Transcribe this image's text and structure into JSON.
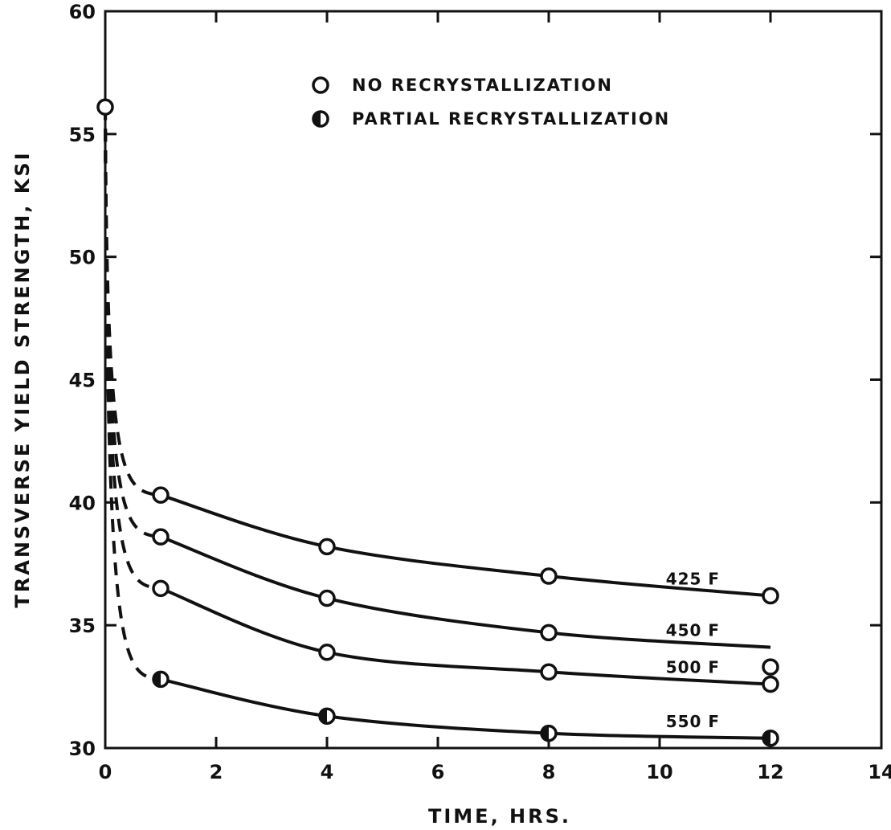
{
  "chart_data": {
    "type": "line",
    "title": "",
    "xlabel": "TIME, HRS.",
    "ylabel": "TRANSVERSE YIELD STRENGTH, KSI",
    "xlim": [
      0,
      14
    ],
    "ylim": [
      30,
      60
    ],
    "x_ticks": [
      0,
      2,
      4,
      6,
      8,
      10,
      12,
      14
    ],
    "y_ticks": [
      30,
      35,
      40,
      45,
      50,
      55,
      60
    ],
    "grid": false,
    "legend": {
      "placement": "top-center",
      "entries": [
        {
          "marker": "open-circle",
          "label": "NO RECRYSTALLIZATION"
        },
        {
          "marker": "half-filled-circle",
          "label": "PARTIAL RECRYSTALLIZATION"
        }
      ]
    },
    "start_point": {
      "x": 0,
      "y": 56.1,
      "marker": "open-circle"
    },
    "series": [
      {
        "name": "425 F",
        "points": [
          {
            "x": 1,
            "y": 40.3,
            "marker": "open-circle"
          },
          {
            "x": 4,
            "y": 38.2,
            "marker": "open-circle"
          },
          {
            "x": 8,
            "y": 37.0,
            "marker": "open-circle"
          },
          {
            "x": 12,
            "y": 36.2,
            "marker": "open-circle"
          }
        ],
        "curve_end": 12
      },
      {
        "name": "450 F",
        "points": [
          {
            "x": 1,
            "y": 38.6,
            "marker": "open-circle"
          },
          {
            "x": 4,
            "y": 36.1,
            "marker": "open-circle"
          },
          {
            "x": 8,
            "y": 34.7,
            "marker": "open-circle"
          }
        ],
        "curve_end": 12,
        "curve_end_y": 34.1
      },
      {
        "name": "500 F",
        "points": [
          {
            "x": 1,
            "y": 36.5,
            "marker": "open-circle"
          },
          {
            "x": 4,
            "y": 33.9,
            "marker": "open-circle"
          },
          {
            "x": 8,
            "y": 33.1,
            "marker": "open-circle"
          },
          {
            "x": 12,
            "y": 32.6,
            "marker": "open-circle"
          },
          {
            "x": 12,
            "y": 33.3,
            "marker": "open-circle"
          }
        ],
        "curve_end": 12,
        "curve_end_y": 32.6
      },
      {
        "name": "550 F",
        "points": [
          {
            "x": 1,
            "y": 32.8,
            "marker": "half-filled-circle"
          },
          {
            "x": 4,
            "y": 31.3,
            "marker": "half-filled-circle"
          },
          {
            "x": 8,
            "y": 30.6,
            "marker": "half-filled-circle"
          },
          {
            "x": 12,
            "y": 30.4,
            "marker": "half-filled-circle"
          }
        ],
        "curve_end": 12,
        "curve_end_y": 30.4
      }
    ],
    "notes": "Dashed segments connect the 0-hr starting point to each 1-hr point; solid curves from 1 to 12 hr."
  }
}
